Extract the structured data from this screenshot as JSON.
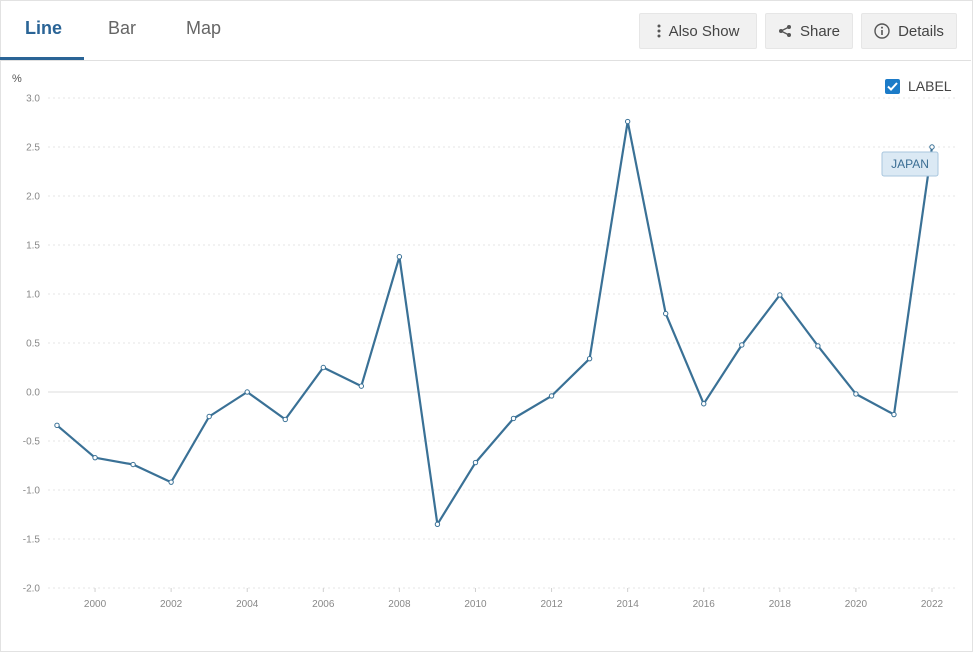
{
  "tabs": [
    {
      "label": "Line",
      "active": true
    },
    {
      "label": "Bar",
      "active": false
    },
    {
      "label": "Map",
      "active": false
    }
  ],
  "toolbar": {
    "also_show": "Also Show",
    "share": "Share",
    "details": "Details"
  },
  "label_toggle": {
    "text": "LABEL",
    "checked": true
  },
  "colors": {
    "accent": "#2a6496",
    "line": "#3a7196",
    "checkbox": "#1c7bc8"
  },
  "chart_data": {
    "type": "line",
    "ylabel": "%",
    "ylim": [
      -2.0,
      3.0
    ],
    "yticks": [
      "-2.0",
      "-1.5",
      "-1.0",
      "-0.5",
      "0.0",
      "0.5",
      "1.0",
      "1.5",
      "2.0",
      "2.5",
      "3.0"
    ],
    "xlim": [
      1999,
      2022
    ],
    "xticks": [
      "2000",
      "2002",
      "2004",
      "2006",
      "2008",
      "2010",
      "2012",
      "2014",
      "2016",
      "2018",
      "2020",
      "2022"
    ],
    "grid": true,
    "series": [
      {
        "name": "JAPAN",
        "x": [
          1999,
          2000,
          2001,
          2002,
          2003,
          2004,
          2005,
          2006,
          2007,
          2008,
          2009,
          2010,
          2011,
          2012,
          2013,
          2014,
          2015,
          2016,
          2017,
          2018,
          2019,
          2020,
          2021,
          2022
        ],
        "values": [
          -0.34,
          -0.67,
          -0.74,
          -0.92,
          -0.25,
          0.0,
          -0.28,
          0.25,
          0.06,
          1.38,
          -1.35,
          -0.72,
          -0.27,
          -0.04,
          0.34,
          2.76,
          0.8,
          -0.12,
          0.48,
          0.99,
          0.47,
          -0.02,
          -0.23,
          2.5
        ]
      }
    ]
  }
}
